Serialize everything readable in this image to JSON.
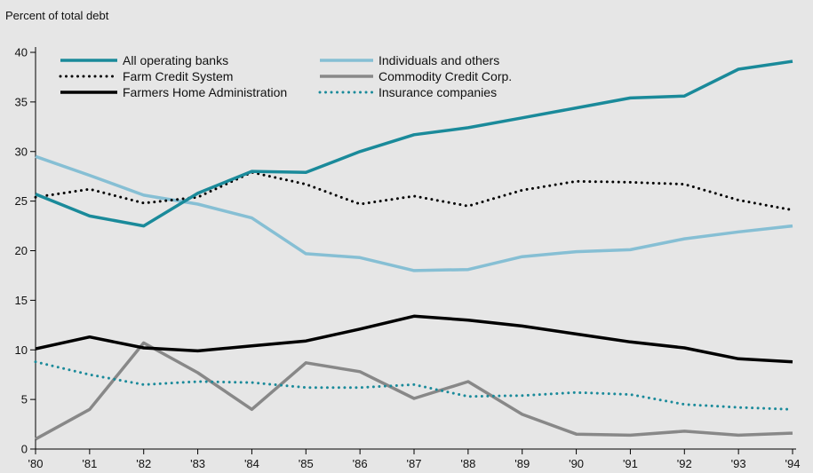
{
  "chart_data": {
    "type": "line",
    "title": "",
    "ylabel": "Percent of total debt",
    "xlabel": "",
    "ylim": [
      0,
      40
    ],
    "yticks": [
      0,
      5,
      10,
      15,
      20,
      25,
      30,
      35,
      40
    ],
    "categories": [
      "'80",
      "'81",
      "'82",
      "'83",
      "'84",
      "'85",
      "'86",
      "'87",
      "'88",
      "'89",
      "'90",
      "'91",
      "'92",
      "'93",
      "'94"
    ],
    "grid": false,
    "legend_position": "top",
    "series": [
      {
        "name": "All operating banks",
        "color": "#1a8a9a",
        "style": "solid",
        "width": 3.5,
        "values": [
          25.7,
          23.5,
          22.5,
          25.8,
          28.0,
          27.9,
          30.0,
          31.7,
          32.4,
          33.4,
          34.4,
          35.4,
          35.6,
          38.3,
          39.1
        ]
      },
      {
        "name": "Farm Credit System",
        "color": "#000000",
        "style": "dotted",
        "width": 3,
        "values": [
          25.4,
          26.2,
          24.8,
          25.4,
          27.9,
          26.7,
          24.7,
          25.5,
          24.5,
          26.1,
          27.0,
          26.9,
          26.7,
          25.1,
          24.1
        ]
      },
      {
        "name": "Farmers Home Administration",
        "color": "#000000",
        "style": "solid",
        "width": 3.5,
        "values": [
          10.1,
          11.3,
          10.2,
          9.9,
          10.4,
          10.9,
          12.1,
          13.4,
          13.0,
          12.4,
          11.6,
          10.8,
          10.2,
          9.1,
          8.8
        ]
      },
      {
        "name": "Individuals and others",
        "color": "#86bfd4",
        "style": "solid",
        "width": 3.5,
        "values": [
          29.5,
          27.6,
          25.6,
          24.7,
          23.3,
          19.7,
          19.3,
          18.0,
          18.1,
          19.4,
          19.9,
          20.1,
          21.2,
          21.9,
          22.5
        ]
      },
      {
        "name": "Commodity Credit Corp.",
        "color": "#888888",
        "style": "solid",
        "width": 3.5,
        "values": [
          1.0,
          4.0,
          10.7,
          7.7,
          4.0,
          8.7,
          7.8,
          5.1,
          6.8,
          3.5,
          1.5,
          1.4,
          1.8,
          1.4,
          1.6
        ]
      },
      {
        "name": "Insurance companies",
        "color": "#1a8a9a",
        "style": "dotted",
        "width": 3,
        "values": [
          8.8,
          7.5,
          6.5,
          6.8,
          6.7,
          6.2,
          6.2,
          6.5,
          5.3,
          5.4,
          5.7,
          5.5,
          4.5,
          4.2,
          4.0
        ]
      }
    ]
  }
}
